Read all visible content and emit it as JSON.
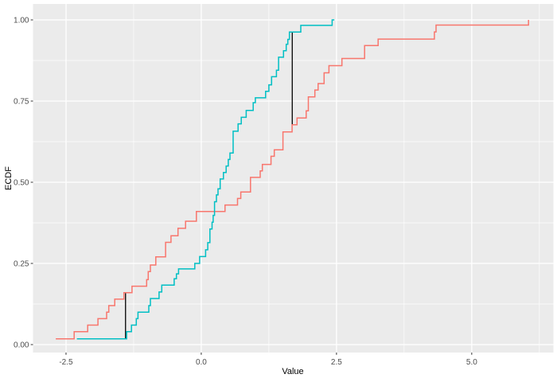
{
  "figure": {
    "xlabel": "Value",
    "ylabel": "ECDF",
    "colors": {
      "background": "#FFFFFF",
      "panel": "#EBEBEB",
      "grid": "#FFFFFF",
      "tick_text": "#4D4D4D",
      "tick_mark": "#333333",
      "axis_title": "#000000",
      "ks_segment": "#000000",
      "series_red": "#F8766D",
      "series_cyan": "#00BFC4"
    }
  },
  "chart_data": {
    "type": "line",
    "subtype": "ecdf-step",
    "title": "",
    "xlabel": "Value",
    "ylabel": "ECDF",
    "xlim": [
      -3.11,
      6.51
    ],
    "ylim": [
      -0.0245,
      1.049
    ],
    "grid": true,
    "legend": "none",
    "x_ticks": {
      "values": [
        -2.5,
        0,
        2.5,
        5
      ],
      "labels": [
        "-2.5",
        "0.0",
        "2.5",
        "5.0"
      ]
    },
    "y_ticks": {
      "values": [
        0,
        0.25,
        0.5,
        0.75,
        1
      ],
      "labels": [
        "0.00",
        "0.25",
        "0.50",
        "0.75",
        "1.00"
      ]
    },
    "x_minor": [
      -1.25,
      1.25,
      3.75,
      6.25
    ],
    "y_minor": [
      0.125,
      0.375,
      0.625,
      0.875
    ],
    "series": [
      {
        "name": "red-series",
        "color": "#F8766D",
        "end_x": 6.05,
        "points": [
          [
            -2.69,
            0.018
          ],
          [
            -2.35,
            0.04
          ],
          [
            -2.1,
            0.06
          ],
          [
            -1.91,
            0.08
          ],
          [
            -1.75,
            0.1
          ],
          [
            -1.71,
            0.12
          ],
          [
            -1.6,
            0.14
          ],
          [
            -1.43,
            0.16
          ],
          [
            -1.28,
            0.18
          ],
          [
            -1.01,
            0.2
          ],
          [
            -0.98,
            0.225
          ],
          [
            -0.94,
            0.245
          ],
          [
            -0.84,
            0.27
          ],
          [
            -0.66,
            0.315
          ],
          [
            -0.56,
            0.335
          ],
          [
            -0.43,
            0.358
          ],
          [
            -0.29,
            0.38
          ],
          [
            -0.09,
            0.41
          ],
          [
            0.44,
            0.43
          ],
          [
            0.67,
            0.45
          ],
          [
            0.73,
            0.47
          ],
          [
            0.91,
            0.515
          ],
          [
            1.09,
            0.535
          ],
          [
            1.13,
            0.555
          ],
          [
            1.29,
            0.58
          ],
          [
            1.35,
            0.6
          ],
          [
            1.51,
            0.655
          ],
          [
            1.68,
            0.677
          ],
          [
            1.77,
            0.698
          ],
          [
            1.94,
            0.72
          ],
          [
            1.98,
            0.763
          ],
          [
            2.1,
            0.784
          ],
          [
            2.16,
            0.804
          ],
          [
            2.27,
            0.837
          ],
          [
            2.36,
            0.859
          ],
          [
            2.6,
            0.881
          ],
          [
            3.02,
            0.921
          ],
          [
            3.27,
            0.941
          ],
          [
            4.31,
            0.963
          ],
          [
            4.34,
            0.984
          ],
          [
            6.05,
            1.0
          ]
        ]
      },
      {
        "name": "cyan-series",
        "color": "#00BFC4",
        "end_x": 2.46,
        "points": [
          [
            -2.3,
            0.018
          ],
          [
            -1.38,
            0.04
          ],
          [
            -1.29,
            0.06
          ],
          [
            -1.2,
            0.08
          ],
          [
            -1.17,
            0.1
          ],
          [
            -0.97,
            0.12
          ],
          [
            -0.94,
            0.142
          ],
          [
            -0.78,
            0.162
          ],
          [
            -0.73,
            0.183
          ],
          [
            -0.5,
            0.203
          ],
          [
            -0.46,
            0.218
          ],
          [
            -0.42,
            0.233
          ],
          [
            -0.12,
            0.25
          ],
          [
            -0.03,
            0.271
          ],
          [
            0.08,
            0.292
          ],
          [
            0.12,
            0.314
          ],
          [
            0.16,
            0.356
          ],
          [
            0.2,
            0.377
          ],
          [
            0.22,
            0.398
          ],
          [
            0.245,
            0.44
          ],
          [
            0.28,
            0.461
          ],
          [
            0.31,
            0.48
          ],
          [
            0.35,
            0.51
          ],
          [
            0.41,
            0.53
          ],
          [
            0.46,
            0.55
          ],
          [
            0.5,
            0.57
          ],
          [
            0.53,
            0.59
          ],
          [
            0.59,
            0.657
          ],
          [
            0.68,
            0.68
          ],
          [
            0.74,
            0.7
          ],
          [
            0.83,
            0.721
          ],
          [
            0.96,
            0.745
          ],
          [
            1.0,
            0.76
          ],
          [
            1.19,
            0.78
          ],
          [
            1.25,
            0.8
          ],
          [
            1.3,
            0.825
          ],
          [
            1.39,
            0.845
          ],
          [
            1.43,
            0.885
          ],
          [
            1.52,
            0.905
          ],
          [
            1.57,
            0.925
          ],
          [
            1.6,
            0.94
          ],
          [
            1.63,
            0.9625
          ],
          [
            1.84,
            0.983
          ],
          [
            2.42,
            1.0
          ]
        ]
      }
    ],
    "annotations": [
      {
        "type": "vline-segment",
        "x": -1.4,
        "y0": 0.018,
        "y1": 0.159,
        "color": "#000000"
      },
      {
        "type": "vline-segment",
        "x": 1.682,
        "y0": 0.6765,
        "y1": 0.9625,
        "color": "#000000"
      }
    ]
  }
}
